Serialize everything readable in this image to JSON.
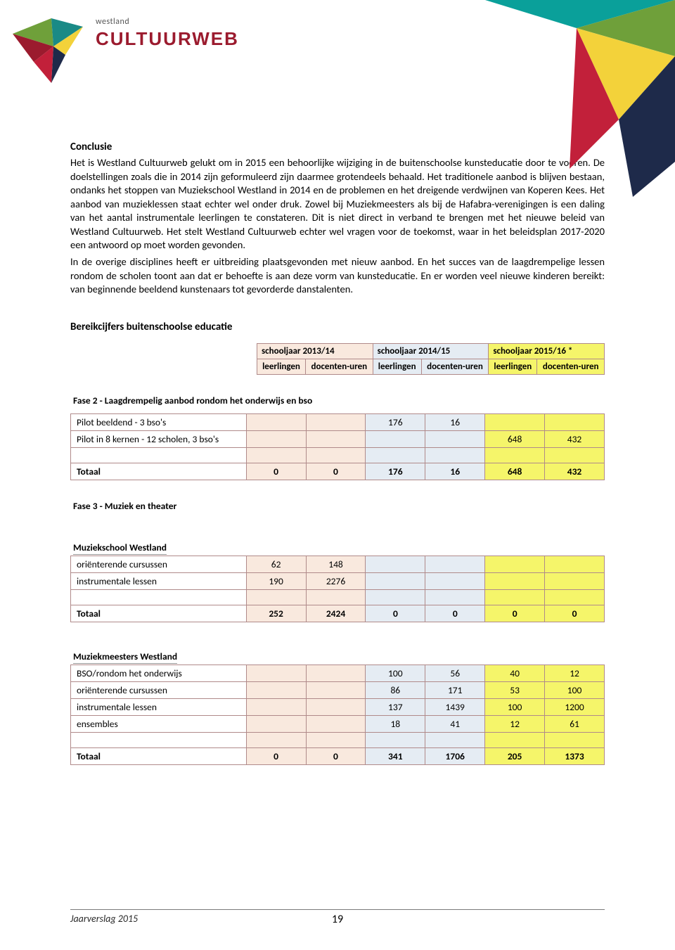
{
  "logo": {
    "westland": "westland",
    "cultuurweb": "CULTUURWEB",
    "colors": {
      "green": "#6fa03a",
      "teal": "#1a8a86",
      "red_dark": "#9b1b2e",
      "red": "#c2203a",
      "yellow": "#f3d23a",
      "navy": "#1e2a4a"
    }
  },
  "corner_colors": {
    "teal": "#0aa09a",
    "green": "#6fa03a",
    "yellow": "#f3d23a",
    "red": "#c2203a",
    "navy": "#1e2a4a"
  },
  "conclusie": {
    "heading": "Conclusie",
    "para1": "Het is Westland Cultuurweb gelukt om in 2015 een behoorlijke wijziging in de buitenschoolse kunsteducatie door te voeren. De doelstellingen zoals die in 2014 zijn geformuleerd zijn daarmee grotendeels behaald. Het traditionele aanbod is blijven bestaan, ondanks het stoppen van Muziekschool Westland in 2014 en de problemen en het dreigende verdwijnen van Koperen Kees. Het aanbod van muzieklessen staat echter wel onder druk. Zowel bij Muziekmeesters als bij de Hafabra-verenigingen is een daling van het aantal instrumentale leerlingen te constateren. Dit is niet direct in verband te brengen met het nieuwe beleid van Westland Cultuurweb. Het stelt Westland Cultuurweb echter wel vragen voor de toekomst, waar in het beleidsplan 2017-2020 een antwoord op moet worden gevonden.",
    "para2": "In de overige disciplines heeft er uitbreiding plaatsgevonden met nieuw aanbod. En het succes van de laagdrempelige lessen rondom de scholen toont aan dat er behoefte is aan deze vorm van kunsteducatie. En er worden veel nieuwe kinderen bereikt: van beginnende beeldend kunstenaars tot gevorderde danstalenten."
  },
  "bereik": {
    "heading": "Bereikcijfers buitenschoolse educatie",
    "header_table": {
      "years": [
        "schooljaar 2013/14",
        "schooljaar 2014/15",
        "schooljaar 2015/16 *"
      ],
      "sub": [
        "leerlingen",
        "docenten-uren",
        "leerlingen",
        "docenten-uren",
        "leerlingen",
        "docenten-uren"
      ]
    },
    "fase2": {
      "title": "Fase 2 - Laagdrempelig aanbod rondom het onderwijs en bso",
      "rows": [
        {
          "label": "Pilot beeldend - 3 bso's",
          "v13a": "",
          "v13b": "",
          "v14a": "176",
          "v14b": "16",
          "v15a": "",
          "v15b": ""
        },
        {
          "label": "Pilot in 8 kernen - 12 scholen, 3 bso's",
          "v13a": "",
          "v13b": "",
          "v14a": "",
          "v14b": "",
          "v15a": "648",
          "v15b": "432"
        },
        {
          "label": "",
          "v13a": "",
          "v13b": "",
          "v14a": "",
          "v14b": "",
          "v15a": "",
          "v15b": ""
        }
      ],
      "total": {
        "label": "Totaal",
        "v13a": "0",
        "v13b": "0",
        "v14a": "176",
        "v14b": "16",
        "v15a": "648",
        "v15b": "432"
      }
    },
    "fase3": {
      "title": "Fase 3 - Muziek en theater",
      "muziekschool": {
        "title": "Muziekschool Westland",
        "rows": [
          {
            "label": "oriënterende cursussen",
            "v13a": "62",
            "v13b": "148",
            "v14a": "",
            "v14b": "",
            "v15a": "",
            "v15b": ""
          },
          {
            "label": "instrumentale lessen",
            "v13a": "190",
            "v13b": "2276",
            "v14a": "",
            "v14b": "",
            "v15a": "",
            "v15b": ""
          },
          {
            "label": "",
            "v13a": "",
            "v13b": "",
            "v14a": "",
            "v14b": "",
            "v15a": "",
            "v15b": ""
          }
        ],
        "total": {
          "label": "Totaal",
          "v13a": "252",
          "v13b": "2424",
          "v14a": "0",
          "v14b": "0",
          "v15a": "0",
          "v15b": "0"
        }
      },
      "muziekmeesters": {
        "title": "Muziekmeesters Westland",
        "rows": [
          {
            "label": "BSO/rondom het onderwijs",
            "v13a": "",
            "v13b": "",
            "v14a": "100",
            "v14b": "56",
            "v15a": "40",
            "v15b": "12"
          },
          {
            "label": "oriënterende cursussen",
            "v13a": "",
            "v13b": "",
            "v14a": "86",
            "v14b": "171",
            "v15a": "53",
            "v15b": "100"
          },
          {
            "label": "instrumentale lessen",
            "v13a": "",
            "v13b": "",
            "v14a": "137",
            "v14b": "1439",
            "v15a": "100",
            "v15b": "1200"
          },
          {
            "label": "ensembles",
            "v13a": "",
            "v13b": "",
            "v14a": "18",
            "v14b": "41",
            "v15a": "12",
            "v15b": "61"
          },
          {
            "label": "",
            "v13a": "",
            "v13b": "",
            "v14a": "",
            "v14b": "",
            "v15a": "",
            "v15b": ""
          }
        ],
        "total": {
          "label": "Totaal",
          "v13a": "0",
          "v13b": "0",
          "v14a": "341",
          "v14b": "1706",
          "v15a": "205",
          "v15b": "1373"
        }
      }
    }
  },
  "footer": {
    "text": "Jaarverslag 2015",
    "page": "19"
  }
}
